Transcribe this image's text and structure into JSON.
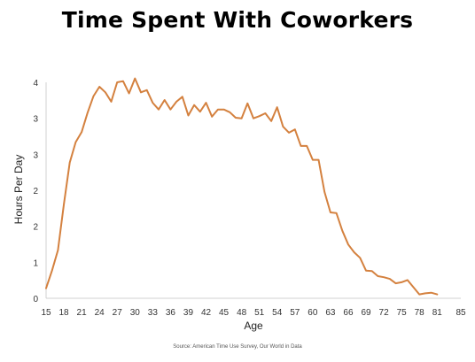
{
  "chart_data": {
    "type": "line",
    "title": "Time Spent With Coworkers",
    "xlabel": "Age",
    "ylabel": "Hours Per Day",
    "source": "Source: American Time Use Survey, Our World in Data",
    "x_ticks": [
      "15",
      "18",
      "21",
      "24",
      "27",
      "30",
      "33",
      "36",
      "39",
      "42",
      "45",
      "48",
      "51",
      "54",
      "57",
      "60",
      "63",
      "66",
      "69",
      "72",
      "75",
      "78",
      "81",
      "85"
    ],
    "y_ticks": [
      "0",
      "1",
      "2",
      "2",
      "3",
      "3",
      "4"
    ],
    "xlim": [
      15,
      85
    ],
    "ylim": [
      0,
      3.9
    ],
    "grid": false,
    "color": "#D4813F",
    "series": [
      {
        "x": [
          15,
          16,
          17,
          18,
          19,
          20,
          21,
          22,
          23,
          24,
          25,
          26,
          27,
          28,
          29,
          30,
          31,
          32,
          33,
          34,
          35,
          36,
          37,
          38,
          39,
          40,
          41,
          42,
          43,
          44,
          45,
          46,
          47,
          48,
          49,
          50,
          51,
          52,
          53,
          54,
          55,
          56,
          57,
          58,
          59,
          60,
          61,
          62,
          63,
          64,
          65,
          66,
          67,
          68,
          69,
          70,
          71,
          72,
          73,
          74,
          75,
          76,
          77,
          78,
          79,
          80,
          81
        ],
        "y": [
          0.18,
          0.5,
          0.87,
          1.7,
          2.45,
          2.82,
          3.0,
          3.35,
          3.65,
          3.82,
          3.72,
          3.55,
          3.9,
          3.92,
          3.7,
          3.97,
          3.72,
          3.76,
          3.53,
          3.41,
          3.58,
          3.41,
          3.55,
          3.64,
          3.3,
          3.49,
          3.37,
          3.53,
          3.28,
          3.41,
          3.41,
          3.36,
          3.26,
          3.25,
          3.52,
          3.25,
          3.29,
          3.34,
          3.2,
          3.45,
          3.1,
          2.99,
          3.05,
          2.75,
          2.75,
          2.5,
          2.5,
          1.92,
          1.55,
          1.54,
          1.22,
          0.97,
          0.83,
          0.73,
          0.5,
          0.49,
          0.4,
          0.38,
          0.35,
          0.27,
          0.29,
          0.33,
          0.2,
          0.07,
          0.09,
          0.1,
          0.07
        ]
      }
    ]
  }
}
